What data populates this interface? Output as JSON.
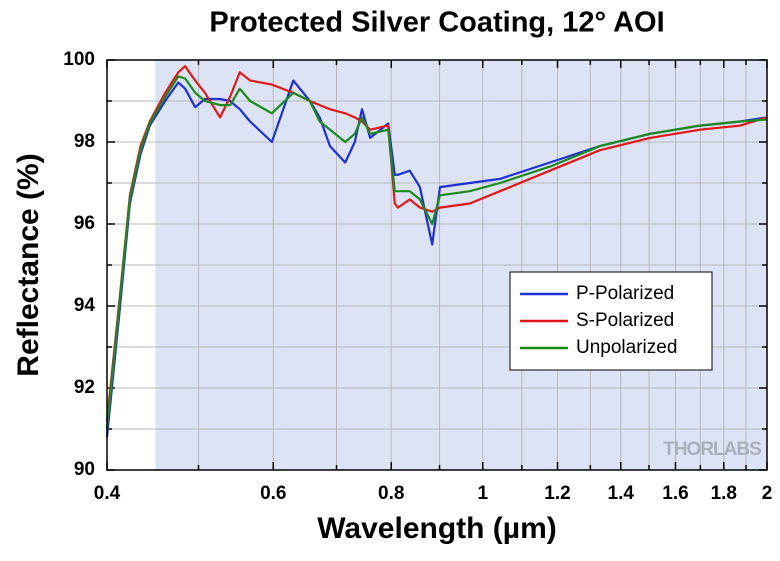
{
  "chart_data": {
    "type": "line",
    "title": "Protected Silver Coating, 12° AOI",
    "xlabel": "Wavelength (µm)",
    "ylabel": "Reflectance (%)",
    "watermark": "THORLABS",
    "x": [
      0.4,
      0.413,
      0.423,
      0.434,
      0.444,
      0.461,
      0.476,
      0.484,
      0.496,
      0.508,
      0.527,
      0.54,
      0.553,
      0.567,
      0.598,
      0.63,
      0.656,
      0.672,
      0.689,
      0.715,
      0.732,
      0.745,
      0.76,
      0.794,
      0.807,
      0.813,
      0.837,
      0.858,
      0.884,
      0.901,
      0.969,
      1.043,
      1.178,
      1.331,
      1.504,
      1.699,
      1.873,
      2.0
    ],
    "series": [
      {
        "name": "P-Polarized",
        "color": "#1f2fd6",
        "values": [
          90.8,
          94.0,
          96.5,
          97.7,
          98.4,
          99.0,
          99.45,
          99.3,
          98.85,
          99.05,
          99.05,
          99.0,
          98.8,
          98.5,
          98.0,
          99.5,
          99.0,
          98.6,
          97.9,
          97.5,
          98.0,
          98.8,
          98.1,
          98.45,
          97.2,
          97.2,
          97.3,
          96.9,
          95.5,
          96.9,
          97.0,
          97.1,
          97.5,
          97.9,
          98.2,
          98.4,
          98.5,
          98.6
        ]
      },
      {
        "name": "S-Polarized",
        "color": "#e01818",
        "values": [
          91.2,
          94.3,
          96.7,
          97.9,
          98.5,
          99.2,
          99.7,
          99.85,
          99.5,
          99.2,
          98.6,
          99.1,
          99.7,
          99.5,
          99.4,
          99.2,
          99.0,
          98.9,
          98.8,
          98.7,
          98.6,
          98.5,
          98.3,
          98.4,
          96.5,
          96.4,
          96.6,
          96.4,
          96.3,
          96.4,
          96.5,
          96.8,
          97.3,
          97.8,
          98.1,
          98.3,
          98.4,
          98.6
        ]
      },
      {
        "name": "Unpolarized",
        "color": "#1a8a1a",
        "values": [
          91.0,
          94.2,
          96.6,
          97.8,
          98.45,
          99.1,
          99.6,
          99.55,
          99.2,
          99.0,
          98.9,
          98.9,
          99.3,
          99.0,
          98.7,
          99.2,
          99.0,
          98.5,
          98.3,
          98.0,
          98.2,
          98.6,
          98.2,
          98.3,
          96.8,
          96.8,
          96.8,
          96.6,
          96.0,
          96.7,
          96.8,
          97.0,
          97.4,
          97.9,
          98.2,
          98.4,
          98.5,
          98.55
        ]
      }
    ],
    "xscale": "log",
    "xlim": [
      0.4,
      2
    ],
    "ylim": [
      90,
      100
    ],
    "xticks": [
      0.4,
      0.6,
      0.8,
      1,
      1.2,
      1.4,
      1.6,
      1.8,
      2
    ],
    "xminor": [
      0.5,
      0.7,
      0.9,
      1.1,
      1.3,
      1.5,
      1.7,
      1.9
    ],
    "yticks": [
      90,
      92,
      94,
      96,
      98,
      100
    ],
    "yminor": [
      91,
      93,
      95,
      97,
      99
    ],
    "grid": true,
    "shaded_region": [
      0.45,
      2
    ],
    "shaded_color": "#dbe3f5",
    "legend": "lower right"
  }
}
